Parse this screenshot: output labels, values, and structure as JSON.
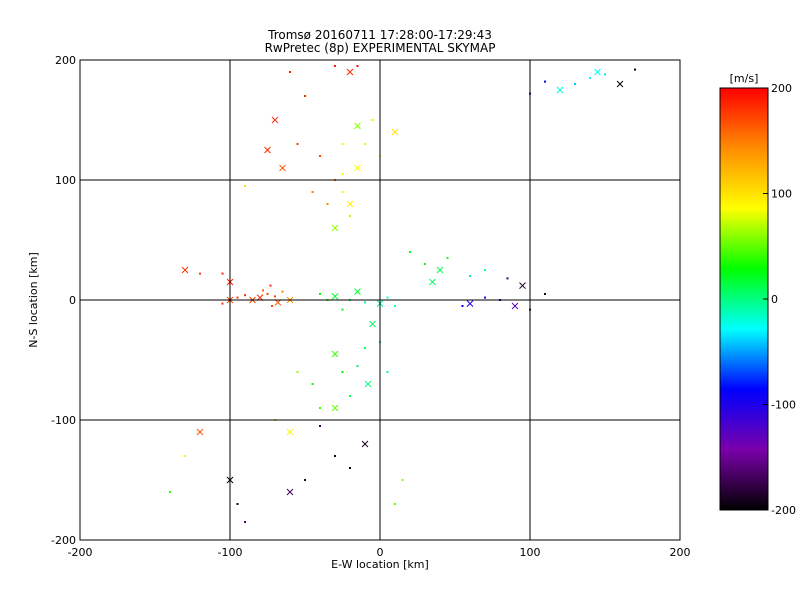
{
  "chart_data": {
    "type": "scatter",
    "title": "Tromsø 20160711 17:28:00-17:29:43",
    "subtitle": "RwPretec (8p) EXPERIMENTAL SKYMAP",
    "xlabel": "E-W location [km]",
    "ylabel": "N-S location [km]",
    "xlim": [
      -200,
      200
    ],
    "ylim": [
      -200,
      200
    ],
    "x_ticks": [
      -200,
      -100,
      0,
      100,
      200
    ],
    "y_ticks": [
      -200,
      -100,
      0,
      100,
      200
    ],
    "x_tick_labels": [
      "-200",
      "-100",
      "0",
      "100",
      "200"
    ],
    "y_tick_labels": [
      "-200",
      "-100",
      "0",
      "100",
      "200"
    ],
    "grid_lines": [
      -100,
      0,
      100
    ],
    "colorbar": {
      "label": "[m/s]",
      "range": [
        -200,
        200
      ],
      "ticks": [
        200,
        100,
        0,
        -100,
        -200
      ],
      "tick_labels": [
        "200",
        "100",
        "0",
        "-100",
        "-200"
      ],
      "colors": [
        "#000000",
        "#7a00aa",
        "#0000ff",
        "#00ffff",
        "#00ff00",
        "#ffff00",
        "#ff8c00",
        "#ff0000"
      ]
    },
    "points": [
      [
        -80,
        2,
        180
      ],
      [
        -75,
        5,
        170
      ],
      [
        -70,
        3,
        175
      ],
      [
        -68,
        -2,
        165
      ],
      [
        -72,
        -5,
        170
      ],
      [
        -78,
        8,
        160
      ],
      [
        -85,
        0,
        175
      ],
      [
        -90,
        4,
        180
      ],
      [
        -65,
        7,
        150
      ],
      [
        -60,
        0,
        140
      ],
      [
        -73,
        12,
        185
      ],
      [
        -95,
        2,
        178
      ],
      [
        -100,
        0,
        175
      ],
      [
        -105,
        -3,
        180
      ],
      [
        -40,
        5,
        30
      ],
      [
        -30,
        3,
        20
      ],
      [
        -20,
        0,
        10
      ],
      [
        -10,
        -2,
        0
      ],
      [
        0,
        -3,
        -5
      ],
      [
        5,
        2,
        -10
      ],
      [
        10,
        -5,
        -15
      ],
      [
        -15,
        7,
        15
      ],
      [
        -25,
        -8,
        25
      ],
      [
        -35,
        0,
        40
      ],
      [
        -5,
        -20,
        5
      ],
      [
        -10,
        -40,
        10
      ],
      [
        -15,
        -55,
        5
      ],
      [
        -8,
        -70,
        0
      ],
      [
        -20,
        -80,
        15
      ],
      [
        -25,
        -60,
        30
      ],
      [
        -30,
        -45,
        40
      ],
      [
        0,
        -35,
        -5
      ],
      [
        5,
        -60,
        -10
      ],
      [
        -30,
        60,
        60
      ],
      [
        -20,
        70,
        70
      ],
      [
        -25,
        90,
        80
      ],
      [
        -15,
        110,
        90
      ],
      [
        -10,
        130,
        95
      ],
      [
        -5,
        150,
        100
      ],
      [
        -20,
        80,
        90
      ],
      [
        -25,
        105,
        85
      ],
      [
        0,
        120,
        90
      ],
      [
        10,
        140,
        100
      ],
      [
        -60,
        190,
        190
      ],
      [
        -50,
        170,
        185
      ],
      [
        -70,
        150,
        180
      ],
      [
        -55,
        130,
        175
      ],
      [
        -40,
        120,
        170
      ],
      [
        -65,
        110,
        165
      ],
      [
        -45,
        90,
        150
      ],
      [
        -30,
        100,
        150
      ],
      [
        -75,
        125,
        185
      ],
      [
        -35,
        80,
        145
      ],
      [
        -30,
        195,
        190
      ],
      [
        -20,
        190,
        185
      ],
      [
        -15,
        195,
        195
      ],
      [
        55,
        -5,
        -95
      ],
      [
        60,
        -3,
        -100
      ],
      [
        70,
        2,
        -110
      ],
      [
        80,
        0,
        -120
      ],
      [
        90,
        -5,
        -130
      ],
      [
        100,
        -8,
        -170
      ],
      [
        110,
        5,
        -190
      ],
      [
        95,
        12,
        -185
      ],
      [
        85,
        18,
        -175
      ],
      [
        140,
        185,
        -30
      ],
      [
        145,
        190,
        -25
      ],
      [
        150,
        188,
        -35
      ],
      [
        130,
        180,
        -40
      ],
      [
        120,
        175,
        -20
      ],
      [
        110,
        182,
        -90
      ],
      [
        100,
        172,
        -80
      ],
      [
        160,
        180,
        -200
      ],
      [
        170,
        192,
        -195
      ],
      [
        30,
        30,
        20
      ],
      [
        40,
        25,
        10
      ],
      [
        45,
        35,
        15
      ],
      [
        20,
        40,
        25
      ],
      [
        35,
        15,
        5
      ],
      [
        60,
        20,
        0
      ],
      [
        70,
        25,
        -10
      ],
      [
        -10,
        -120,
        -190
      ],
      [
        -20,
        -140,
        -195
      ],
      [
        -50,
        -150,
        -180
      ],
      [
        -60,
        -160,
        -170
      ],
      [
        -30,
        -130,
        -185
      ],
      [
        -40,
        -105,
        -175
      ],
      [
        -120,
        -110,
        165
      ],
      [
        -130,
        -130,
        90
      ],
      [
        -140,
        -160,
        40
      ],
      [
        -100,
        -150,
        -200
      ],
      [
        -95,
        -170,
        -190
      ],
      [
        -90,
        -185,
        -160
      ],
      [
        -130,
        25,
        180
      ],
      [
        -120,
        22,
        175
      ],
      [
        -90,
        95,
        100
      ],
      [
        -100,
        15,
        190
      ],
      [
        -105,
        22,
        185
      ],
      [
        -25,
        130,
        80
      ],
      [
        -15,
        145,
        60
      ],
      [
        15,
        -150,
        60
      ],
      [
        10,
        -170,
        50
      ],
      [
        -60,
        -110,
        90
      ],
      [
        -70,
        -100,
        60
      ],
      [
        -40,
        -90,
        40
      ],
      [
        -30,
        -90,
        50
      ],
      [
        -45,
        -70,
        30
      ],
      [
        -55,
        -60,
        60
      ]
    ]
  }
}
